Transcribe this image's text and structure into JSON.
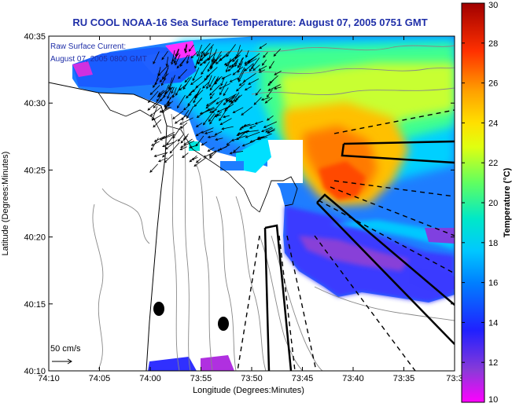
{
  "title": "RU COOL  NOAA-16  Sea Surface Temperature:  August 07, 2005 0751 GMT",
  "annotation": {
    "line1": "Raw Surface Current:",
    "line2": "August 07, 2005 0800 GMT"
  },
  "scale_label": "50 cm/s",
  "x_axis": {
    "label": "Longitude (Degrees:Minutes)",
    "ticks": [
      "74:10",
      "74:05",
      "74:00",
      "73:55",
      "73:50",
      "73:45",
      "73:40",
      "73:35",
      "73:3"
    ]
  },
  "y_axis": {
    "label": "Latitude (Degrees:Minutes)",
    "ticks": [
      "40:35",
      "40:30",
      "40:25",
      "40:20",
      "40:15",
      "40:10"
    ]
  },
  "colorbar": {
    "label": "Temperature (°C)",
    "min": 10,
    "max": 30,
    "ticks": [
      "30",
      "28",
      "26",
      "24",
      "22",
      "20",
      "18",
      "16",
      "14",
      "12",
      "10"
    ],
    "colors": [
      "#ff00ff",
      "#7a3fd6",
      "#2020ff",
      "#0080ff",
      "#00c0ff",
      "#00e8e0",
      "#40ff80",
      "#c8ff20",
      "#ffff00",
      "#ffb000",
      "#ff6000",
      "#ff0000",
      "#a00000"
    ]
  }
}
